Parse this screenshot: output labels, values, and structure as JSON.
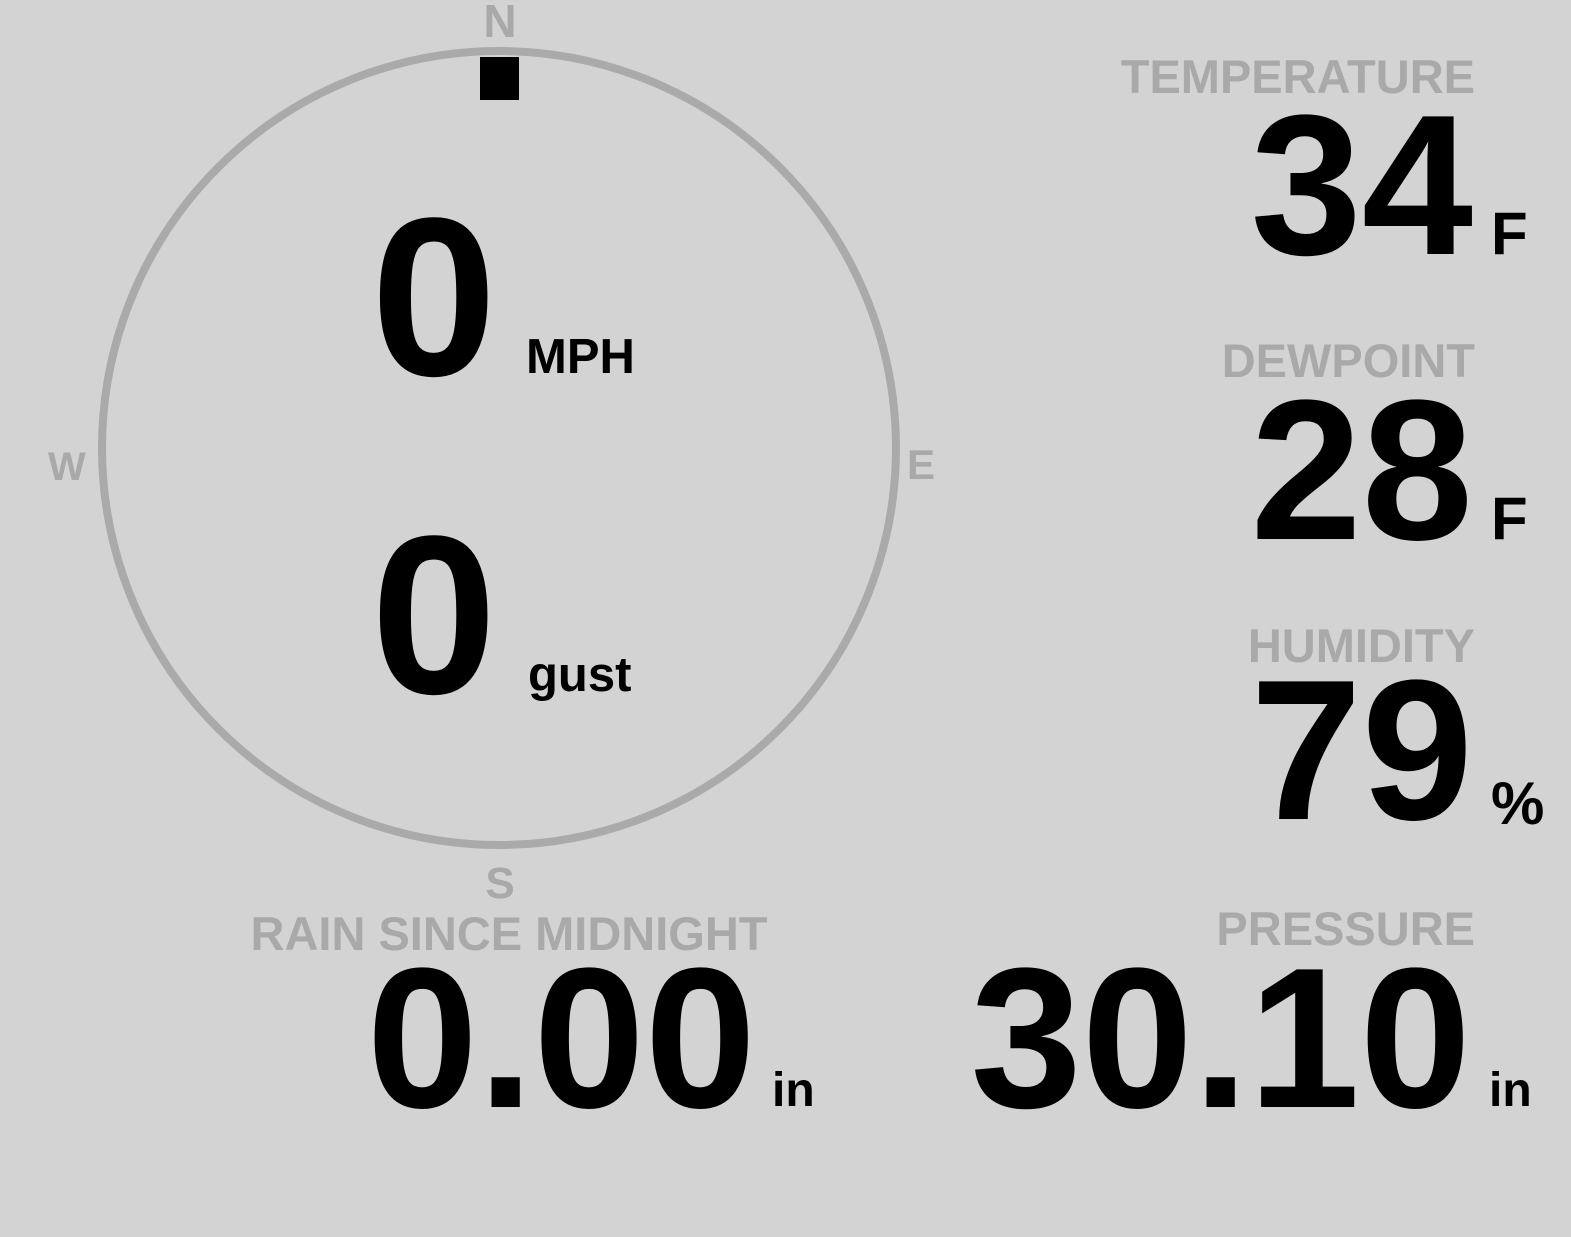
{
  "wind": {
    "speed": "0",
    "speed_unit": "MPH",
    "gust": "0",
    "gust_label": "gust",
    "direction_degrees": 0,
    "compass": {
      "n": "N",
      "e": "E",
      "s": "S",
      "w": "W"
    }
  },
  "temperature": {
    "label": "TEMPERATURE",
    "value": "34",
    "unit": "F"
  },
  "dewpoint": {
    "label": "DEWPOINT",
    "value": "28",
    "unit": "F"
  },
  "humidity": {
    "label": "HUMIDITY",
    "value": "79",
    "unit": "%"
  },
  "rain": {
    "label": "RAIN SINCE MIDNIGHT",
    "value": "0.00",
    "unit": "in"
  },
  "pressure": {
    "label": "PRESSURE",
    "value": "30.10",
    "unit": "in"
  },
  "colors": {
    "background": "#d3d3d3",
    "ring": "#a9a9a9",
    "label": "#a9a9a9",
    "value": "#000000"
  }
}
